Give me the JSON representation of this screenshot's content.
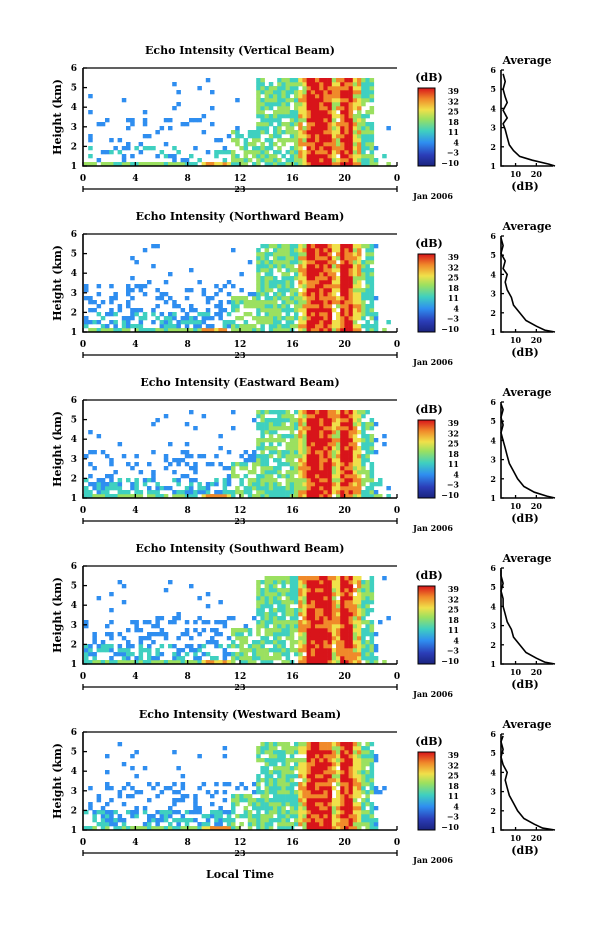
{
  "figure": {
    "colorbar_unit": "(dB)",
    "colorbar_ticks": [
      "39",
      "32",
      "25",
      "18",
      "11",
      "4",
      "−3",
      "−10"
    ],
    "colorbar_min": -10,
    "colorbar_max": 39,
    "y_ticks": [
      "1",
      "2",
      "3",
      "4",
      "5",
      "6"
    ],
    "y_label": "Height (km)",
    "x_ticks": [
      "0",
      "4",
      "8",
      "12",
      "16",
      "20",
      "0"
    ],
    "date_day": "23",
    "date_month_year": "Jan 2006",
    "x_label": "Local Time",
    "avg_title": "Average",
    "avg_xlabel": "(dB)",
    "colors": {
      "low": "#2b3db8",
      "mid": "#3fd0c0",
      "high": "#f0e04a",
      "peak": "#e8201c"
    }
  },
  "panels": [
    {
      "title": "Echo Intensity (Vertical Beam)",
      "avg_x_ticks": [
        "10",
        "20"
      ]
    },
    {
      "title": "Echo Intensity (Northward Beam)",
      "avg_x_ticks": [
        "10",
        "20"
      ]
    },
    {
      "title": "Echo Intensity (Eastward Beam)",
      "avg_x_ticks": [
        "10",
        "20"
      ]
    },
    {
      "title": "Echo Intensity (Southward Beam)",
      "avg_x_ticks": [
        "10",
        "20"
      ]
    },
    {
      "title": "Echo Intensity (Westward Beam)",
      "avg_x_ticks": [
        "10",
        "20"
      ]
    }
  ],
  "chart_data": [
    {
      "type": "heatmap",
      "title": "Echo Intensity (Vertical Beam)",
      "xlabel": "",
      "ylabel": "Height (km)",
      "x_range": [
        0,
        24
      ],
      "y_range": [
        1,
        6
      ],
      "color_range_dB": [
        -10,
        39
      ],
      "x_unit": "local time (h), 23 Jan 2006",
      "profile": {
        "title": "Average",
        "xlabel": "(dB)",
        "xlim": [
          3,
          28
        ],
        "ylim": [
          1,
          6
        ],
        "height_km": [
          1.1,
          1.3,
          1.5,
          1.8,
          2.1,
          2.5,
          2.9,
          3.2,
          3.5,
          3.9,
          4.3,
          4.6,
          5.0,
          5.4,
          5.8
        ],
        "value_dB": [
          26,
          18,
          12,
          9,
          7,
          6,
          5,
          4,
          6,
          4,
          6,
          5,
          4,
          5,
          4
        ]
      }
    },
    {
      "type": "heatmap",
      "title": "Echo Intensity (Northward Beam)",
      "xlabel": "",
      "ylabel": "Height (km)",
      "x_range": [
        0,
        24
      ],
      "y_range": [
        1,
        6
      ],
      "color_range_dB": [
        -10,
        39
      ],
      "profile": {
        "title": "Average",
        "xlabel": "(dB)",
        "xlim": [
          3,
          28
        ],
        "ylim": [
          1,
          6
        ],
        "height_km": [
          1.1,
          1.3,
          1.6,
          2.0,
          2.4,
          2.8,
          3.2,
          3.6,
          4.0,
          4.3,
          4.7,
          5.1,
          5.5,
          5.9
        ],
        "value_dB": [
          24,
          20,
          15,
          12,
          9,
          8,
          6,
          5,
          6,
          4,
          5,
          3,
          4,
          3
        ]
      }
    },
    {
      "type": "heatmap",
      "title": "Echo Intensity (Eastward Beam)",
      "xlabel": "",
      "ylabel": "Height (km)",
      "x_range": [
        0,
        24
      ],
      "y_range": [
        1,
        6
      ],
      "color_range_dB": [
        -10,
        39
      ],
      "profile": {
        "title": "Average",
        "xlabel": "(dB)",
        "xlim": [
          3,
          28
        ],
        "ylim": [
          1,
          6
        ],
        "height_km": [
          1.1,
          1.3,
          1.6,
          2.0,
          2.4,
          2.8,
          3.2,
          3.6,
          4.0,
          4.4,
          4.8,
          5.2,
          5.6,
          5.9
        ],
        "value_dB": [
          25,
          19,
          14,
          11,
          9,
          7,
          6,
          5,
          4,
          3,
          4,
          3,
          4,
          3
        ]
      }
    },
    {
      "type": "heatmap",
      "title": "Echo Intensity (Southward Beam)",
      "xlabel": "",
      "ylabel": "Height (km)",
      "x_range": [
        0,
        24
      ],
      "y_range": [
        1,
        6
      ],
      "color_range_dB": [
        -10,
        39
      ],
      "profile": {
        "title": "Average",
        "xlabel": "(dB)",
        "xlim": [
          3,
          28
        ],
        "ylim": [
          1,
          6
        ],
        "height_km": [
          1.1,
          1.3,
          1.6,
          2.0,
          2.4,
          2.8,
          3.2,
          3.6,
          4.0,
          4.4,
          4.8,
          5.2,
          5.6,
          5.9
        ],
        "value_dB": [
          24,
          20,
          15,
          12,
          9,
          8,
          6,
          5,
          4,
          4,
          3,
          4,
          3,
          3
        ]
      }
    },
    {
      "type": "heatmap",
      "title": "Echo Intensity (Westward Beam)",
      "xlabel": "Local Time",
      "ylabel": "Height (km)",
      "x_range": [
        0,
        24
      ],
      "y_range": [
        1,
        6
      ],
      "color_range_dB": [
        -10,
        39
      ],
      "profile": {
        "title": "Average",
        "xlabel": "(dB)",
        "xlim": [
          3,
          28
        ],
        "ylim": [
          1,
          6
        ],
        "height_km": [
          1.1,
          1.3,
          1.6,
          2.0,
          2.4,
          2.8,
          3.2,
          3.6,
          4.0,
          4.4,
          4.8,
          5.2,
          5.6,
          5.9
        ],
        "value_dB": [
          23,
          19,
          14,
          11,
          9,
          7,
          6,
          5,
          6,
          4,
          3,
          4,
          3,
          4
        ]
      }
    }
  ]
}
